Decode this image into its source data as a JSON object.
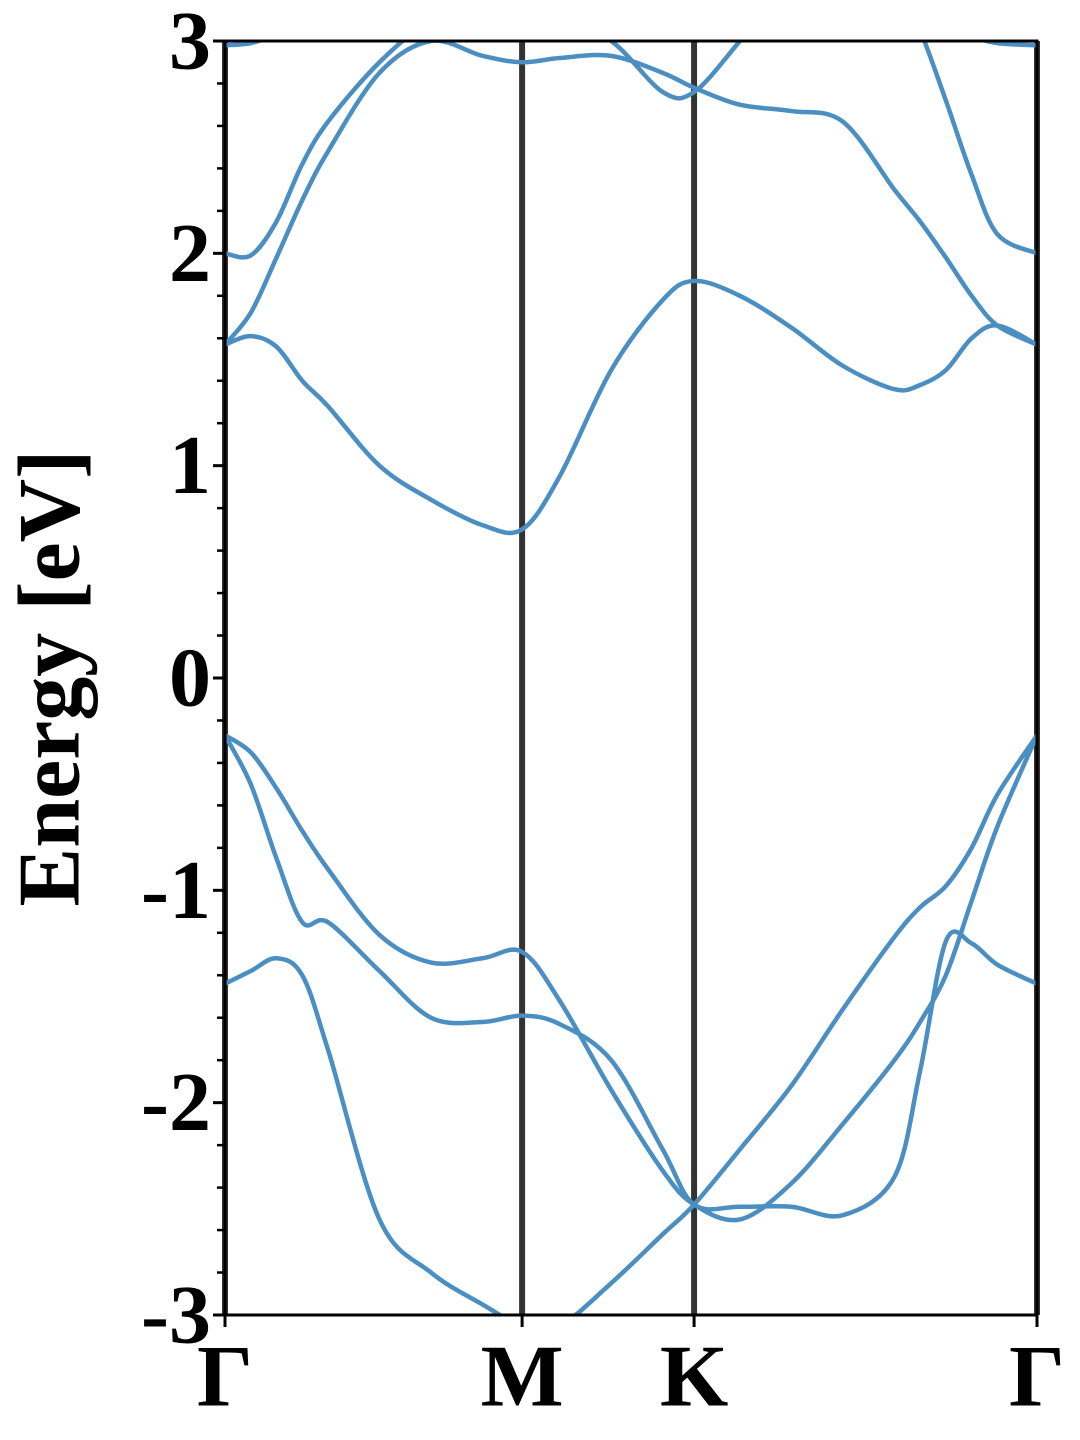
{
  "chart_data": {
    "type": "line",
    "ylabel": "Energy [eV]",
    "x": [
      0,
      0.05,
      0.1,
      0.15,
      0.2,
      0.3,
      0.4,
      0.5,
      0.577,
      0.65,
      0.75,
      0.85,
      0.911,
      1.0,
      1.1,
      1.2,
      1.3,
      1.35,
      1.4,
      1.45,
      1.5,
      1.577
    ],
    "series": [
      {
        "color": "#4b8fc2",
        "values": [
          -1.44,
          -1.38,
          -1.32,
          -1.4,
          -1.75,
          -2.55,
          -2.8,
          -2.95,
          -3.05,
          -3.05,
          -2.85,
          -2.62,
          -2.48,
          -2.22,
          -1.92,
          -1.56,
          -1.22,
          -1.08,
          -0.98,
          -0.8,
          -0.55,
          -0.27
        ]
      },
      {
        "color": "#4b8fc2",
        "values": [
          -0.27,
          -0.5,
          -0.85,
          -1.15,
          -1.15,
          -1.38,
          -1.6,
          -1.62,
          -1.59,
          -1.63,
          -1.8,
          -2.22,
          -2.48,
          -2.49,
          -2.49,
          -2.53,
          -2.35,
          -1.85,
          -1.24,
          -1.25,
          -1.35,
          -1.44
        ]
      },
      {
        "color": "#4b8fc2",
        "values": [
          -0.27,
          -0.35,
          -0.52,
          -0.72,
          -0.9,
          -1.21,
          -1.34,
          -1.32,
          -1.29,
          -1.52,
          -1.94,
          -2.32,
          -2.48,
          -2.55,
          -2.38,
          -2.1,
          -1.8,
          -1.62,
          -1.4,
          -1.05,
          -0.7,
          -0.27
        ]
      },
      {
        "color": "#4b8fc2",
        "values": [
          1.57,
          1.61,
          1.56,
          1.4,
          1.28,
          1.0,
          0.84,
          0.72,
          0.7,
          0.95,
          1.45,
          1.78,
          1.87,
          1.8,
          1.65,
          1.47,
          1.36,
          1.38,
          1.45,
          1.6,
          1.66,
          1.57
        ]
      },
      {
        "color": "#4b8fc2",
        "values": [
          1.57,
          1.72,
          1.98,
          2.25,
          2.48,
          2.85,
          3.0,
          2.93,
          2.9,
          2.92,
          2.93,
          2.85,
          2.78,
          2.7,
          2.67,
          2.62,
          2.3,
          2.15,
          1.98,
          1.8,
          1.66,
          1.57
        ]
      },
      {
        "color": "#4b8fc2",
        "values": [
          2.0,
          1.99,
          2.15,
          2.42,
          2.62,
          2.9,
          3.1,
          3.2,
          3.2,
          3.1,
          3.0,
          2.76,
          2.76,
          3.0,
          3.3,
          3.4,
          3.3,
          3.05,
          2.72,
          2.37,
          2.09,
          2.0
        ]
      },
      {
        "color": "#4b8fc2",
        "values": [
          2.98,
          2.99,
          3.03,
          null,
          null,
          null,
          null,
          null,
          null,
          null,
          null,
          null,
          null,
          null,
          null,
          null,
          null,
          null,
          null,
          3.02,
          2.99,
          2.98
        ]
      }
    ],
    "xlim": [
      0,
      1.577
    ],
    "xticks": [
      {
        "value": 0,
        "label": "Γ"
      },
      {
        "value": 0.577,
        "label": "M"
      },
      {
        "value": 0.911,
        "label": "K"
      },
      {
        "value": 1.577,
        "label": "Γ"
      }
    ],
    "xgrid": true,
    "xgrid_color": "#333333",
    "ylim": [
      -3,
      3
    ],
    "yticks": [
      -3,
      -2,
      -1,
      0,
      1,
      2,
      3
    ],
    "yminorticks": [
      -2.8,
      -2.6,
      -2.4,
      -2.2,
      -1.8,
      -1.6,
      -1.4,
      -1.2,
      -0.8,
      -0.6,
      -0.4,
      -0.2,
      0.2,
      0.4,
      0.6,
      0.8,
      1.2,
      1.4,
      1.6,
      1.8,
      2.2,
      2.4,
      2.6,
      2.8
    ]
  }
}
